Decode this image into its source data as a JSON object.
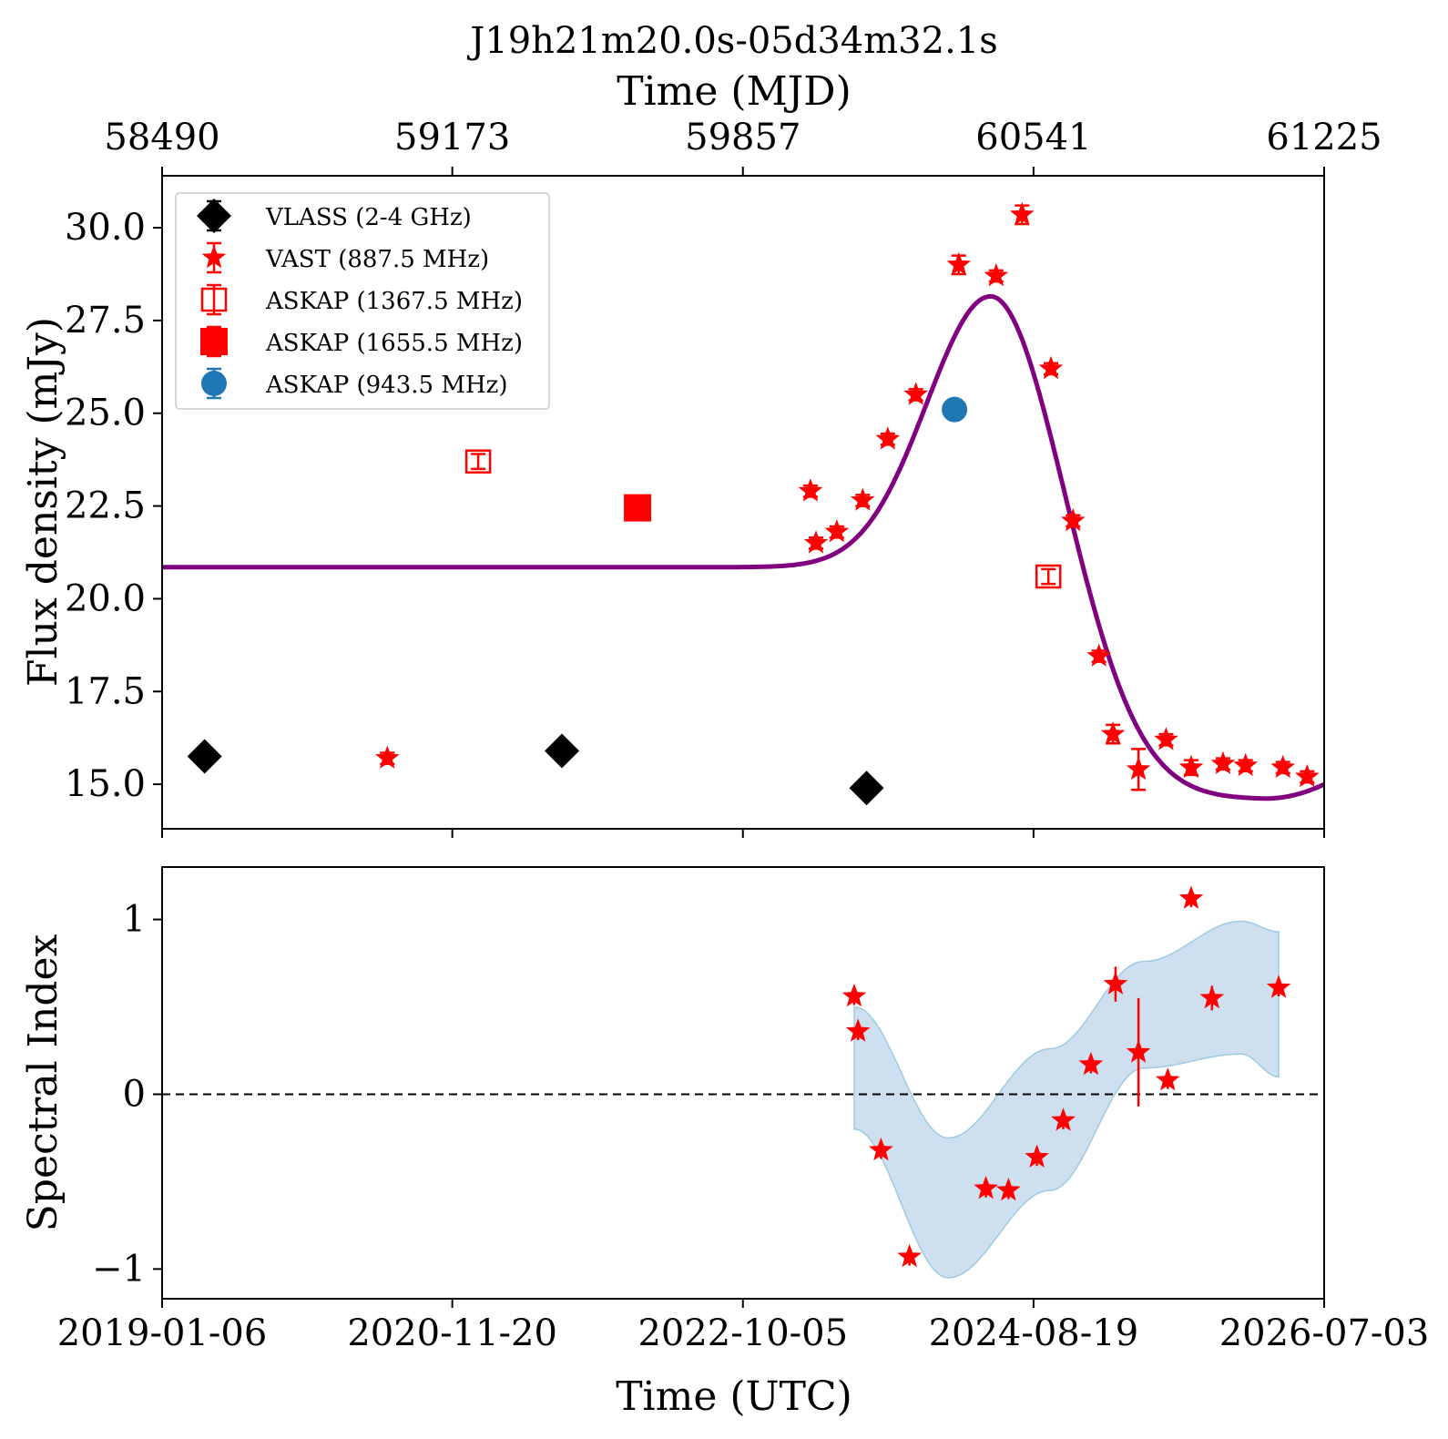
{
  "title": "J19h21m20.0s-05d34m32.1s",
  "top_axis_label": "Time (MJD)",
  "bottom_axis_label": "Time (UTC)",
  "top_panel_ylabel": "Flux density (mJy)",
  "bottom_panel_ylabel": "Spectral Index",
  "mjd_ticks": [
    "58490",
    "59173",
    "59857",
    "60541",
    "61225"
  ],
  "utc_ticks": [
    "2019-01-06",
    "2020-11-20",
    "2022-10-05",
    "2024-08-19",
    "2026-07-03"
  ],
  "flux_ticks": [
    "15.0",
    "17.5",
    "20.0",
    "22.5",
    "25.0",
    "27.5",
    "30.0"
  ],
  "index_ticks": [
    "−1",
    "0",
    "1"
  ],
  "colors": {
    "vast": "#ff0000",
    "vlass": "#000000",
    "askap943": "#1f77b4",
    "model": "#800080",
    "band": "#c6dbec",
    "band_edge": "#9ecae1"
  },
  "chart_data": [
    {
      "type": "scatter",
      "title": "J19h21m20.0s-05d34m32.1s",
      "xlabel": "Time (MJD)",
      "ylabel": "Flux density (mJy)",
      "xlim": [
        58490,
        61225
      ],
      "ylim": [
        13.8,
        31.4
      ],
      "legend_position": "top-left",
      "series": [
        {
          "name": "VLASS (2-4 GHz)",
          "marker": "diamond",
          "color": "#000000",
          "x": [
            58590,
            59431,
            60148
          ],
          "y": [
            15.75,
            15.9,
            14.9
          ],
          "err": [
            0.15,
            0.15,
            0.15
          ]
        },
        {
          "name": "VAST (887.5 MHz)",
          "marker": "star",
          "color": "#ff0000",
          "x": [
            59020,
            60016,
            60029,
            60078,
            60139,
            60198,
            60264,
            60365,
            60453,
            60514,
            60582,
            60634,
            60695,
            60728,
            60788,
            60853,
            60912,
            60987,
            61040,
            61128,
            61185
          ],
          "y": [
            15.7,
            22.9,
            21.5,
            21.8,
            22.65,
            24.3,
            25.5,
            29.0,
            28.7,
            30.35,
            26.2,
            22.1,
            18.45,
            16.35,
            15.4,
            16.2,
            15.45,
            15.55,
            15.5,
            15.45,
            15.2
          ],
          "err": [
            0.15,
            0.15,
            0.15,
            0.15,
            0.15,
            0.15,
            0.15,
            0.25,
            0.15,
            0.25,
            0.15,
            0.15,
            0.15,
            0.25,
            0.55,
            0.15,
            0.2,
            0.15,
            0.15,
            0.15,
            0.15
          ]
        },
        {
          "name": "ASKAP (1367.5 MHz)",
          "marker": "square-open",
          "color": "#ff0000",
          "x": [
            59234,
            60576
          ],
          "y": [
            23.7,
            20.6
          ],
          "err": [
            0.2,
            0.2
          ]
        },
        {
          "name": "ASKAP (1655.5 MHz)",
          "marker": "square",
          "color": "#ff0000",
          "x": [
            59609
          ],
          "y": [
            22.45
          ],
          "err": [
            0.1
          ]
        },
        {
          "name": "ASKAP (943.5 MHz)",
          "marker": "circle",
          "color": "#1f77b4",
          "x": [
            60355
          ],
          "y": [
            25.1
          ],
          "err": [
            0.1
          ]
        }
      ],
      "model_curve": {
        "baseline": 20.85,
        "peak_x": 60440,
        "peak_y": 28.15,
        "floor": 14.6,
        "end_x": 61225,
        "end_y": 15.0
      }
    },
    {
      "type": "scatter",
      "xlabel": "Time (UTC)",
      "ylabel": "Spectral Index",
      "xlim": [
        58490,
        61225
      ],
      "ylim": [
        -1.17,
        1.3
      ],
      "reference_line": 0,
      "series": [
        {
          "marker": "star",
          "color": "#ff0000",
          "x": [
            60119,
            60128,
            60182,
            60249,
            60429,
            60482,
            60549,
            60611,
            60676,
            60734,
            60788,
            60857,
            60912,
            60961,
            61118
          ],
          "y": [
            0.56,
            0.36,
            -0.32,
            -0.93,
            -0.54,
            -0.55,
            -0.36,
            -0.15,
            0.17,
            0.63,
            0.24,
            0.08,
            1.12,
            0.55,
            0.61
          ],
          "err": [
            0.05,
            0.05,
            0.05,
            0.05,
            0.05,
            0.05,
            0.05,
            0.05,
            0.05,
            0.1,
            0.31,
            0.05,
            0.05,
            0.07,
            0.05
          ]
        }
      ],
      "confidence_band": {
        "x": [
          60119,
          60340,
          60580,
          60800,
          61030,
          61118
        ],
        "upper": [
          0.5,
          -0.25,
          0.26,
          0.76,
          0.99,
          0.93
        ],
        "lower": [
          -0.2,
          -1.05,
          -0.55,
          0.15,
          0.23,
          0.1
        ]
      }
    }
  ]
}
